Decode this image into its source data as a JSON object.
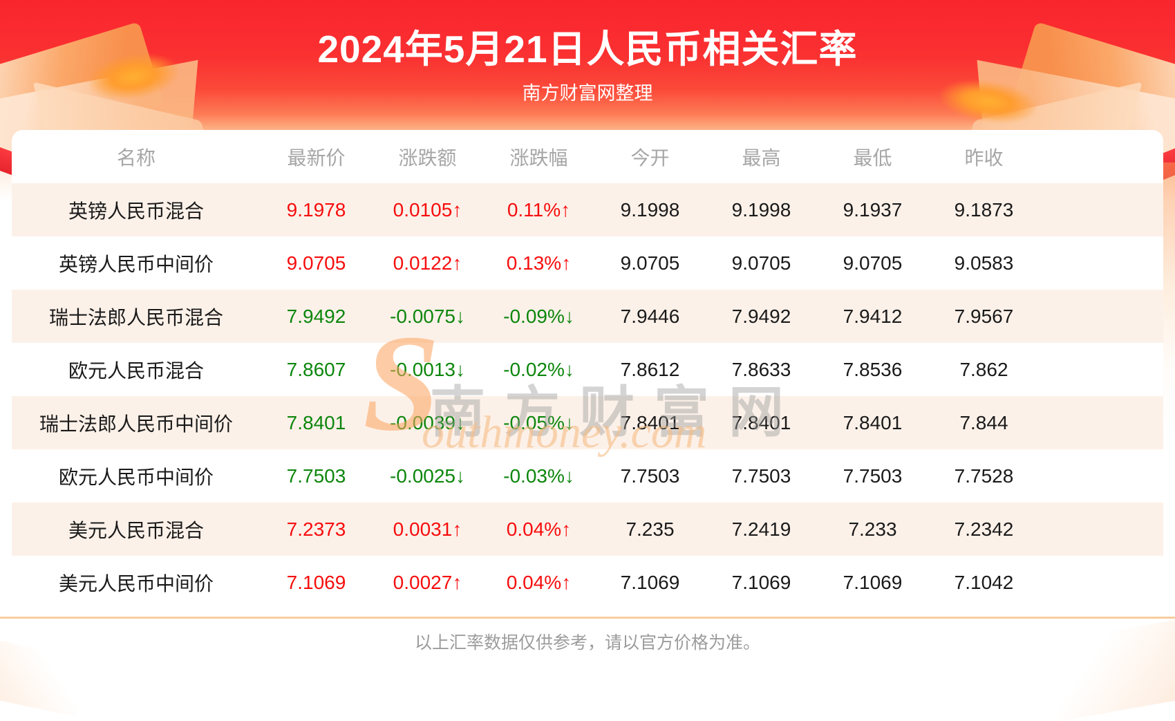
{
  "banner": {
    "title": "2024年5月21日人民币相关汇率",
    "subtitle": "南方财富网整理"
  },
  "table": {
    "columns": [
      "名称",
      "最新价",
      "涨跌额",
      "涨跌幅",
      "今开",
      "最高",
      "最低",
      "昨收"
    ],
    "rows": [
      {
        "name": "英镑人民币混合",
        "latest": "9.1978",
        "change": "0.0105↑",
        "change_pct": "0.11%↑",
        "open": "9.1998",
        "high": "9.1998",
        "low": "9.1937",
        "prev_close": "9.1873",
        "trend": "up"
      },
      {
        "name": "英镑人民币中间价",
        "latest": "9.0705",
        "change": "0.0122↑",
        "change_pct": "0.13%↑",
        "open": "9.0705",
        "high": "9.0705",
        "low": "9.0705",
        "prev_close": "9.0583",
        "trend": "up"
      },
      {
        "name": "瑞士法郎人民币混合",
        "latest": "7.9492",
        "change": "-0.0075↓",
        "change_pct": "-0.09%↓",
        "open": "7.9446",
        "high": "7.9492",
        "low": "7.9412",
        "prev_close": "7.9567",
        "trend": "down"
      },
      {
        "name": "欧元人民币混合",
        "latest": "7.8607",
        "change": "-0.0013↓",
        "change_pct": "-0.02%↓",
        "open": "7.8612",
        "high": "7.8633",
        "low": "7.8536",
        "prev_close": "7.862",
        "trend": "down"
      },
      {
        "name": "瑞士法郎人民币中间价",
        "latest": "7.8401",
        "change": "-0.0039↓",
        "change_pct": "-0.05%↓",
        "open": "7.8401",
        "high": "7.8401",
        "low": "7.8401",
        "prev_close": "7.844",
        "trend": "down"
      },
      {
        "name": "欧元人民币中间价",
        "latest": "7.7503",
        "change": "-0.0025↓",
        "change_pct": "-0.03%↓",
        "open": "7.7503",
        "high": "7.7503",
        "low": "7.7503",
        "prev_close": "7.7528",
        "trend": "down"
      },
      {
        "name": "美元人民币混合",
        "latest": "7.2373",
        "change": "0.0031↑",
        "change_pct": "0.04%↑",
        "open": "7.235",
        "high": "7.2419",
        "low": "7.233",
        "prev_close": "7.2342",
        "trend": "up"
      },
      {
        "name": "美元人民币中间价",
        "latest": "7.1069",
        "change": "0.0027↑",
        "change_pct": "0.04%↑",
        "open": "7.1069",
        "high": "7.1069",
        "low": "7.1069",
        "prev_close": "7.1042",
        "trend": "up"
      }
    ]
  },
  "watermark": {
    "en_s": "S",
    "cn": "南方财富网",
    "en_rest": "outhmoney.com"
  },
  "footer": {
    "note": "以上汇率数据仅供参考，请以官方价格为准。"
  },
  "colors": {
    "up": "#f70d0d",
    "down": "#0c860c",
    "stripe": "#fcf1e9",
    "divider": "#f7cd9e",
    "banner_red": "#fa2d35"
  }
}
